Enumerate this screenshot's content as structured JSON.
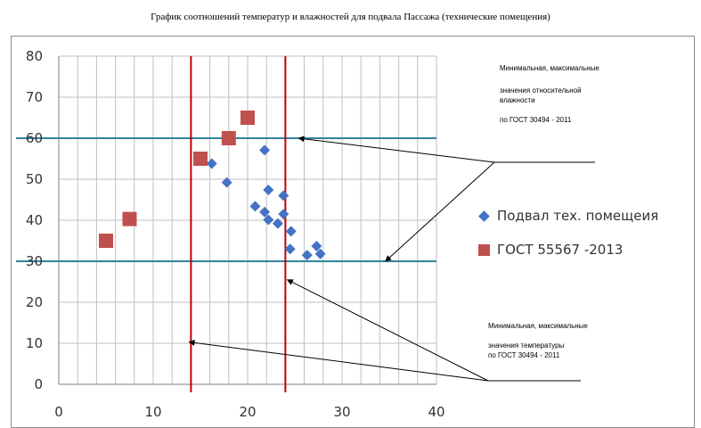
{
  "title": "График соотношений температур и влажностей для подвала Пассажа (технические помещения)",
  "chart_data": {
    "type": "scatter",
    "title": "График соотношений температур и влажностей для подвала Пассажа (технические помещения)",
    "xlim": [
      0,
      40
    ],
    "ylim": [
      0,
      80
    ],
    "x_ticks": [
      "0",
      "10",
      "20",
      "30",
      "40"
    ],
    "y_ticks": [
      "0",
      "10",
      "20",
      "30",
      "40",
      "50",
      "60",
      "70",
      "80"
    ],
    "grid": true,
    "legend_position": "right",
    "series": [
      {
        "name": "Подвал тех. помещеия",
        "marker": "diamond",
        "color": "#4472c4",
        "points": [
          [
            16.2,
            53.8
          ],
          [
            17.8,
            49.2
          ],
          [
            21.8,
            57.1
          ],
          [
            22.2,
            47.4
          ],
          [
            23.8,
            46.0
          ],
          [
            20.8,
            43.4
          ],
          [
            21.8,
            42.0
          ],
          [
            22.2,
            40.1
          ],
          [
            23.2,
            39.2
          ],
          [
            23.8,
            41.5
          ],
          [
            24.6,
            37.3
          ],
          [
            24.5,
            33.0
          ],
          [
            26.3,
            31.5
          ],
          [
            27.3,
            33.7
          ],
          [
            27.7,
            31.8
          ]
        ]
      },
      {
        "name": "ГОСТ 55567 -2013",
        "marker": "square",
        "color": "#c0504d",
        "points": [
          [
            5.0,
            35.0
          ],
          [
            7.5,
            40.3
          ],
          [
            15.0,
            55.0
          ],
          [
            18.0,
            60.0
          ],
          [
            20.0,
            65.0
          ]
        ]
      }
    ],
    "reference_lines": {
      "horizontal": [
        60,
        30
      ],
      "horizontal_color": "#31849b",
      "vertical": [
        14,
        24
      ],
      "vertical_color": "#c00000"
    },
    "annotations": [
      {
        "lines": [
          "Минимальная, максимальные",
          "значения относительной",
          "влажности",
          "по ГОСТ 30494 - 2011"
        ],
        "arrow_targets": [
          [
            25.4,
            60
          ],
          [
            34.6,
            30
          ]
        ]
      },
      {
        "lines": [
          "Минимальная, максимальные",
          "значения температуры",
          "по  ГОСТ 30494 - 2011"
        ],
        "arrow_targets": [
          [
            13.8,
            10.3
          ],
          [
            24.2,
            25.5
          ]
        ]
      }
    ]
  }
}
